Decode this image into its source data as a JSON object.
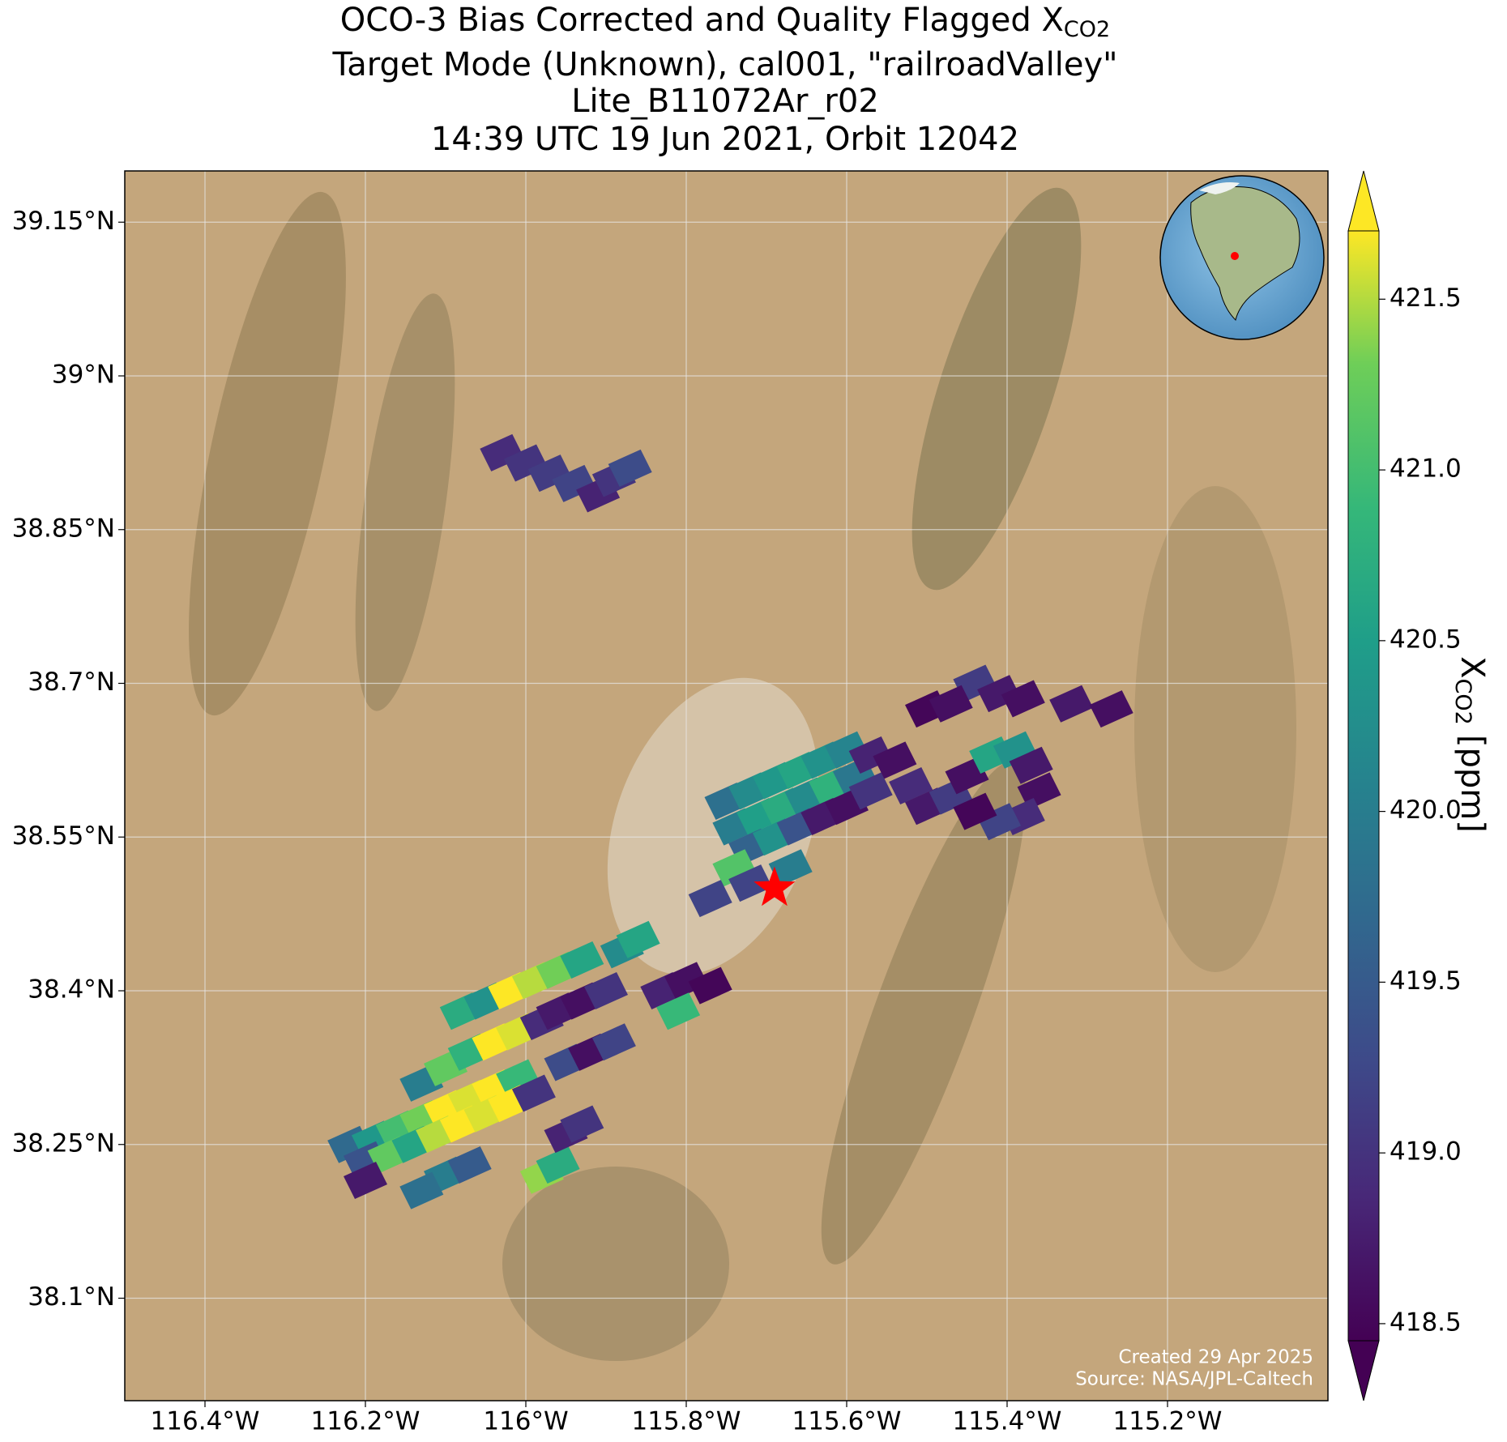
{
  "chart_data": {
    "type": "footprint-map",
    "title": {
      "text": "OCO-3 Bias Corrected and Quality Flagged X",
      "subscript": "CO2"
    },
    "subtitle": [
      "Target Mode (Unknown), cal001, \"railroadValley\"",
      "Lite_B11072Ar_r02",
      "14:39 UTC 19 Jun 2021, Orbit 12042"
    ],
    "xlim": [
      -116.5,
      -115.0
    ],
    "ylim": [
      38.0,
      39.2
    ],
    "xticks": [
      {
        "value": -116.4,
        "label": "116.4°W"
      },
      {
        "value": -116.2,
        "label": "116.2°W"
      },
      {
        "value": -116.0,
        "label": "116°W"
      },
      {
        "value": -115.8,
        "label": "115.8°W"
      },
      {
        "value": -115.6,
        "label": "115.6°W"
      },
      {
        "value": -115.4,
        "label": "115.4°W"
      },
      {
        "value": -115.2,
        "label": "115.2°W"
      }
    ],
    "yticks": [
      {
        "value": 39.15,
        "label": "39.15°N"
      },
      {
        "value": 39.0,
        "label": "39°N"
      },
      {
        "value": 38.85,
        "label": "38.85°N"
      },
      {
        "value": 38.7,
        "label": "38.7°N"
      },
      {
        "value": 38.55,
        "label": "38.55°N"
      },
      {
        "value": 38.4,
        "label": "38.4°N"
      },
      {
        "value": 38.25,
        "label": "38.25°N"
      },
      {
        "value": 38.1,
        "label": "38.1°N"
      }
    ],
    "grid": true,
    "colorbar": {
      "label": {
        "text": "X",
        "subscript": "CO2",
        "unit": "[ppm]"
      },
      "clim": [
        418.45,
        421.7
      ],
      "ticks": [
        418.5,
        {
          "value": 419,
          "label": "419.0"
        },
        419.5,
        {
          "value": 420,
          "label": "420.0"
        },
        420.5,
        {
          "value": 421,
          "label": "421.0"
        },
        421.5
      ],
      "colormap": "viridis",
      "extend": "both"
    },
    "target": {
      "x": -115.69,
      "y": 38.5,
      "color": "#ff0000"
    },
    "x": [
      -116.03,
      -116.0,
      -115.97,
      -115.94,
      -115.91,
      -115.89,
      -115.87,
      -115.44,
      -115.41,
      -115.38,
      -115.32,
      -115.27,
      -115.5,
      -115.47,
      -115.75,
      -115.72,
      -115.69,
      -115.66,
      -115.63,
      -115.6,
      -115.74,
      -115.71,
      -115.68,
      -115.65,
      -115.62,
      -115.59,
      -115.72,
      -115.69,
      -115.66,
      -115.63,
      -115.6,
      -115.57,
      -115.74,
      -115.72,
      -115.67,
      -115.57,
      -115.54,
      -115.52,
      -115.5,
      -115.47,
      -115.45,
      -115.42,
      -115.39,
      -115.37,
      -115.36,
      -115.38,
      -115.41,
      -115.44,
      -115.77,
      -116.22,
      -116.19,
      -116.16,
      -116.13,
      -116.1,
      -116.07,
      -116.04,
      -116.01,
      -116.2,
      -116.17,
      -116.14,
      -116.11,
      -116.08,
      -116.05,
      -116.02,
      -115.99,
      -116.13,
      -116.1,
      -116.07,
      -116.04,
      -116.01,
      -115.98,
      -116.08,
      -116.05,
      -116.02,
      -115.99,
      -115.96,
      -115.93,
      -115.96,
      -115.93,
      -115.9,
      -115.88,
      -115.86,
      -115.95,
      -115.92,
      -115.89,
      -115.83,
      -115.8,
      -115.77,
      -115.81,
      -116.1,
      -116.07,
      -116.2,
      -116.13,
      -115.98,
      -115.96,
      -115.95,
      -115.93
    ],
    "y": [
      38.925,
      38.915,
      38.905,
      38.895,
      38.885,
      38.9,
      38.91,
      38.7,
      38.69,
      38.685,
      38.68,
      38.675,
      38.675,
      38.68,
      38.585,
      38.595,
      38.605,
      38.615,
      38.625,
      38.635,
      38.56,
      38.57,
      38.58,
      38.59,
      38.6,
      38.61,
      38.54,
      38.55,
      38.56,
      38.57,
      38.58,
      38.595,
      38.52,
      38.505,
      38.52,
      38.63,
      38.625,
      38.6,
      38.58,
      38.59,
      38.61,
      38.63,
      38.635,
      38.62,
      38.595,
      38.57,
      38.565,
      38.575,
      38.49,
      38.25,
      38.255,
      38.265,
      38.275,
      38.285,
      38.295,
      38.305,
      38.315,
      38.235,
      38.24,
      38.25,
      38.26,
      38.27,
      38.28,
      38.29,
      38.3,
      38.31,
      38.325,
      38.34,
      38.35,
      38.36,
      38.37,
      38.38,
      38.39,
      38.4,
      38.41,
      38.42,
      38.43,
      38.38,
      38.39,
      38.4,
      38.44,
      38.45,
      38.33,
      38.34,
      38.35,
      38.4,
      38.41,
      38.405,
      38.38,
      38.22,
      38.23,
      38.215,
      38.205,
      38.22,
      38.23,
      38.26,
      38.27
    ],
    "values": [
      418.9,
      419.0,
      419.1,
      419.2,
      418.8,
      419.0,
      419.3,
      419.1,
      418.7,
      418.6,
      418.7,
      418.6,
      418.5,
      418.6,
      419.8,
      420.2,
      420.4,
      420.6,
      420.3,
      420.1,
      420.0,
      420.5,
      420.7,
      420.2,
      420.8,
      419.9,
      419.6,
      420.3,
      419.4,
      418.7,
      418.6,
      419.0,
      421.1,
      419.2,
      420.0,
      418.8,
      418.6,
      418.9,
      418.7,
      419.1,
      418.6,
      420.6,
      420.3,
      418.7,
      418.6,
      418.9,
      419.2,
      418.5,
      419.2,
      419.7,
      420.4,
      421.0,
      421.3,
      421.7,
      421.6,
      421.7,
      420.9,
      419.4,
      421.2,
      420.6,
      421.5,
      421.7,
      421.6,
      421.7,
      419.0,
      420.0,
      421.2,
      420.8,
      421.7,
      421.6,
      418.9,
      420.7,
      420.3,
      421.7,
      421.5,
      421.3,
      420.6,
      418.7,
      418.6,
      419.0,
      420.2,
      420.6,
      419.3,
      418.6,
      419.2,
      418.8,
      418.6,
      418.5,
      420.9,
      420.0,
      419.5,
      418.7,
      419.8,
      421.4,
      420.7,
      418.8,
      419.0
    ],
    "annotations": [
      "Created 29 Apr 2025",
      "Source: NASA/JPL-Caltech"
    ]
  }
}
